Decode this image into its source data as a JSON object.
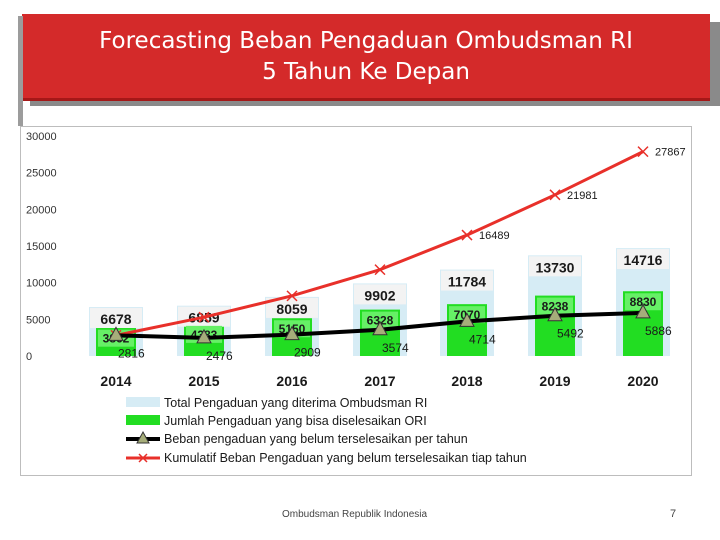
{
  "slide": {
    "title_line1": "Forecasting Beban Pengaduan Ombudsman RI",
    "title_line2": "5 Tahun Ke Depan",
    "footer": "Ombudsman Republik Indonesia",
    "page_number": "7"
  },
  "chart_data": {
    "type": "bar",
    "title": "",
    "xlabel": "",
    "ylabel": "",
    "ylim": [
      0,
      30000
    ],
    "yticks": [
      "0",
      "5000",
      "10000",
      "15000",
      "20000",
      "25000",
      "30000"
    ],
    "categories": [
      "2014",
      "2015",
      "2016",
      "2017",
      "2018",
      "2019",
      "2020"
    ],
    "grid": false,
    "legend_position": "bottom",
    "series": [
      {
        "name": "Total Pengaduan yang diterima Ombudsman RI",
        "kind": "bar",
        "color": "#d6ecf5",
        "values": [
          6678,
          6859,
          8059,
          9902,
          11784,
          13730,
          14716
        ],
        "labels": [
          "6678",
          "6859",
          "8059",
          "9902",
          "11784",
          "13730",
          "14716"
        ]
      },
      {
        "name": "Jumlah Pengaduan yang bisa diselesaikan ORI",
        "kind": "bar",
        "color": "#22dd22",
        "values": [
          3862,
          4383,
          5150,
          6328,
          7070,
          8238,
          8830
        ],
        "labels": [
          "3862",
          "4383",
          "5150",
          "6328",
          "7070",
          "8238",
          "8830"
        ]
      },
      {
        "name": "Beban pengaduan yang belum terselesaikan per tahun",
        "kind": "line",
        "color": "#000000",
        "marker": "triangle",
        "marker_color": "#a6ad7a",
        "values": [
          2816,
          2476,
          2909,
          3574,
          4714,
          5492,
          5886
        ],
        "labels": [
          "2816",
          "2476",
          "2909",
          "3574",
          "4714",
          "5492",
          "5886"
        ]
      },
      {
        "name": "Kumulatif Beban Pengaduan yang belum terselesaikan tiap tahun",
        "kind": "line",
        "color": "#e8302a",
        "marker": "x",
        "marker_color": "#e8302a",
        "values": [
          2816,
          5292,
          8201,
          11775,
          16489,
          21981,
          27867
        ],
        "labels": [
          "",
          "",
          "",
          "",
          "16489",
          "21981",
          "27867"
        ]
      }
    ]
  }
}
